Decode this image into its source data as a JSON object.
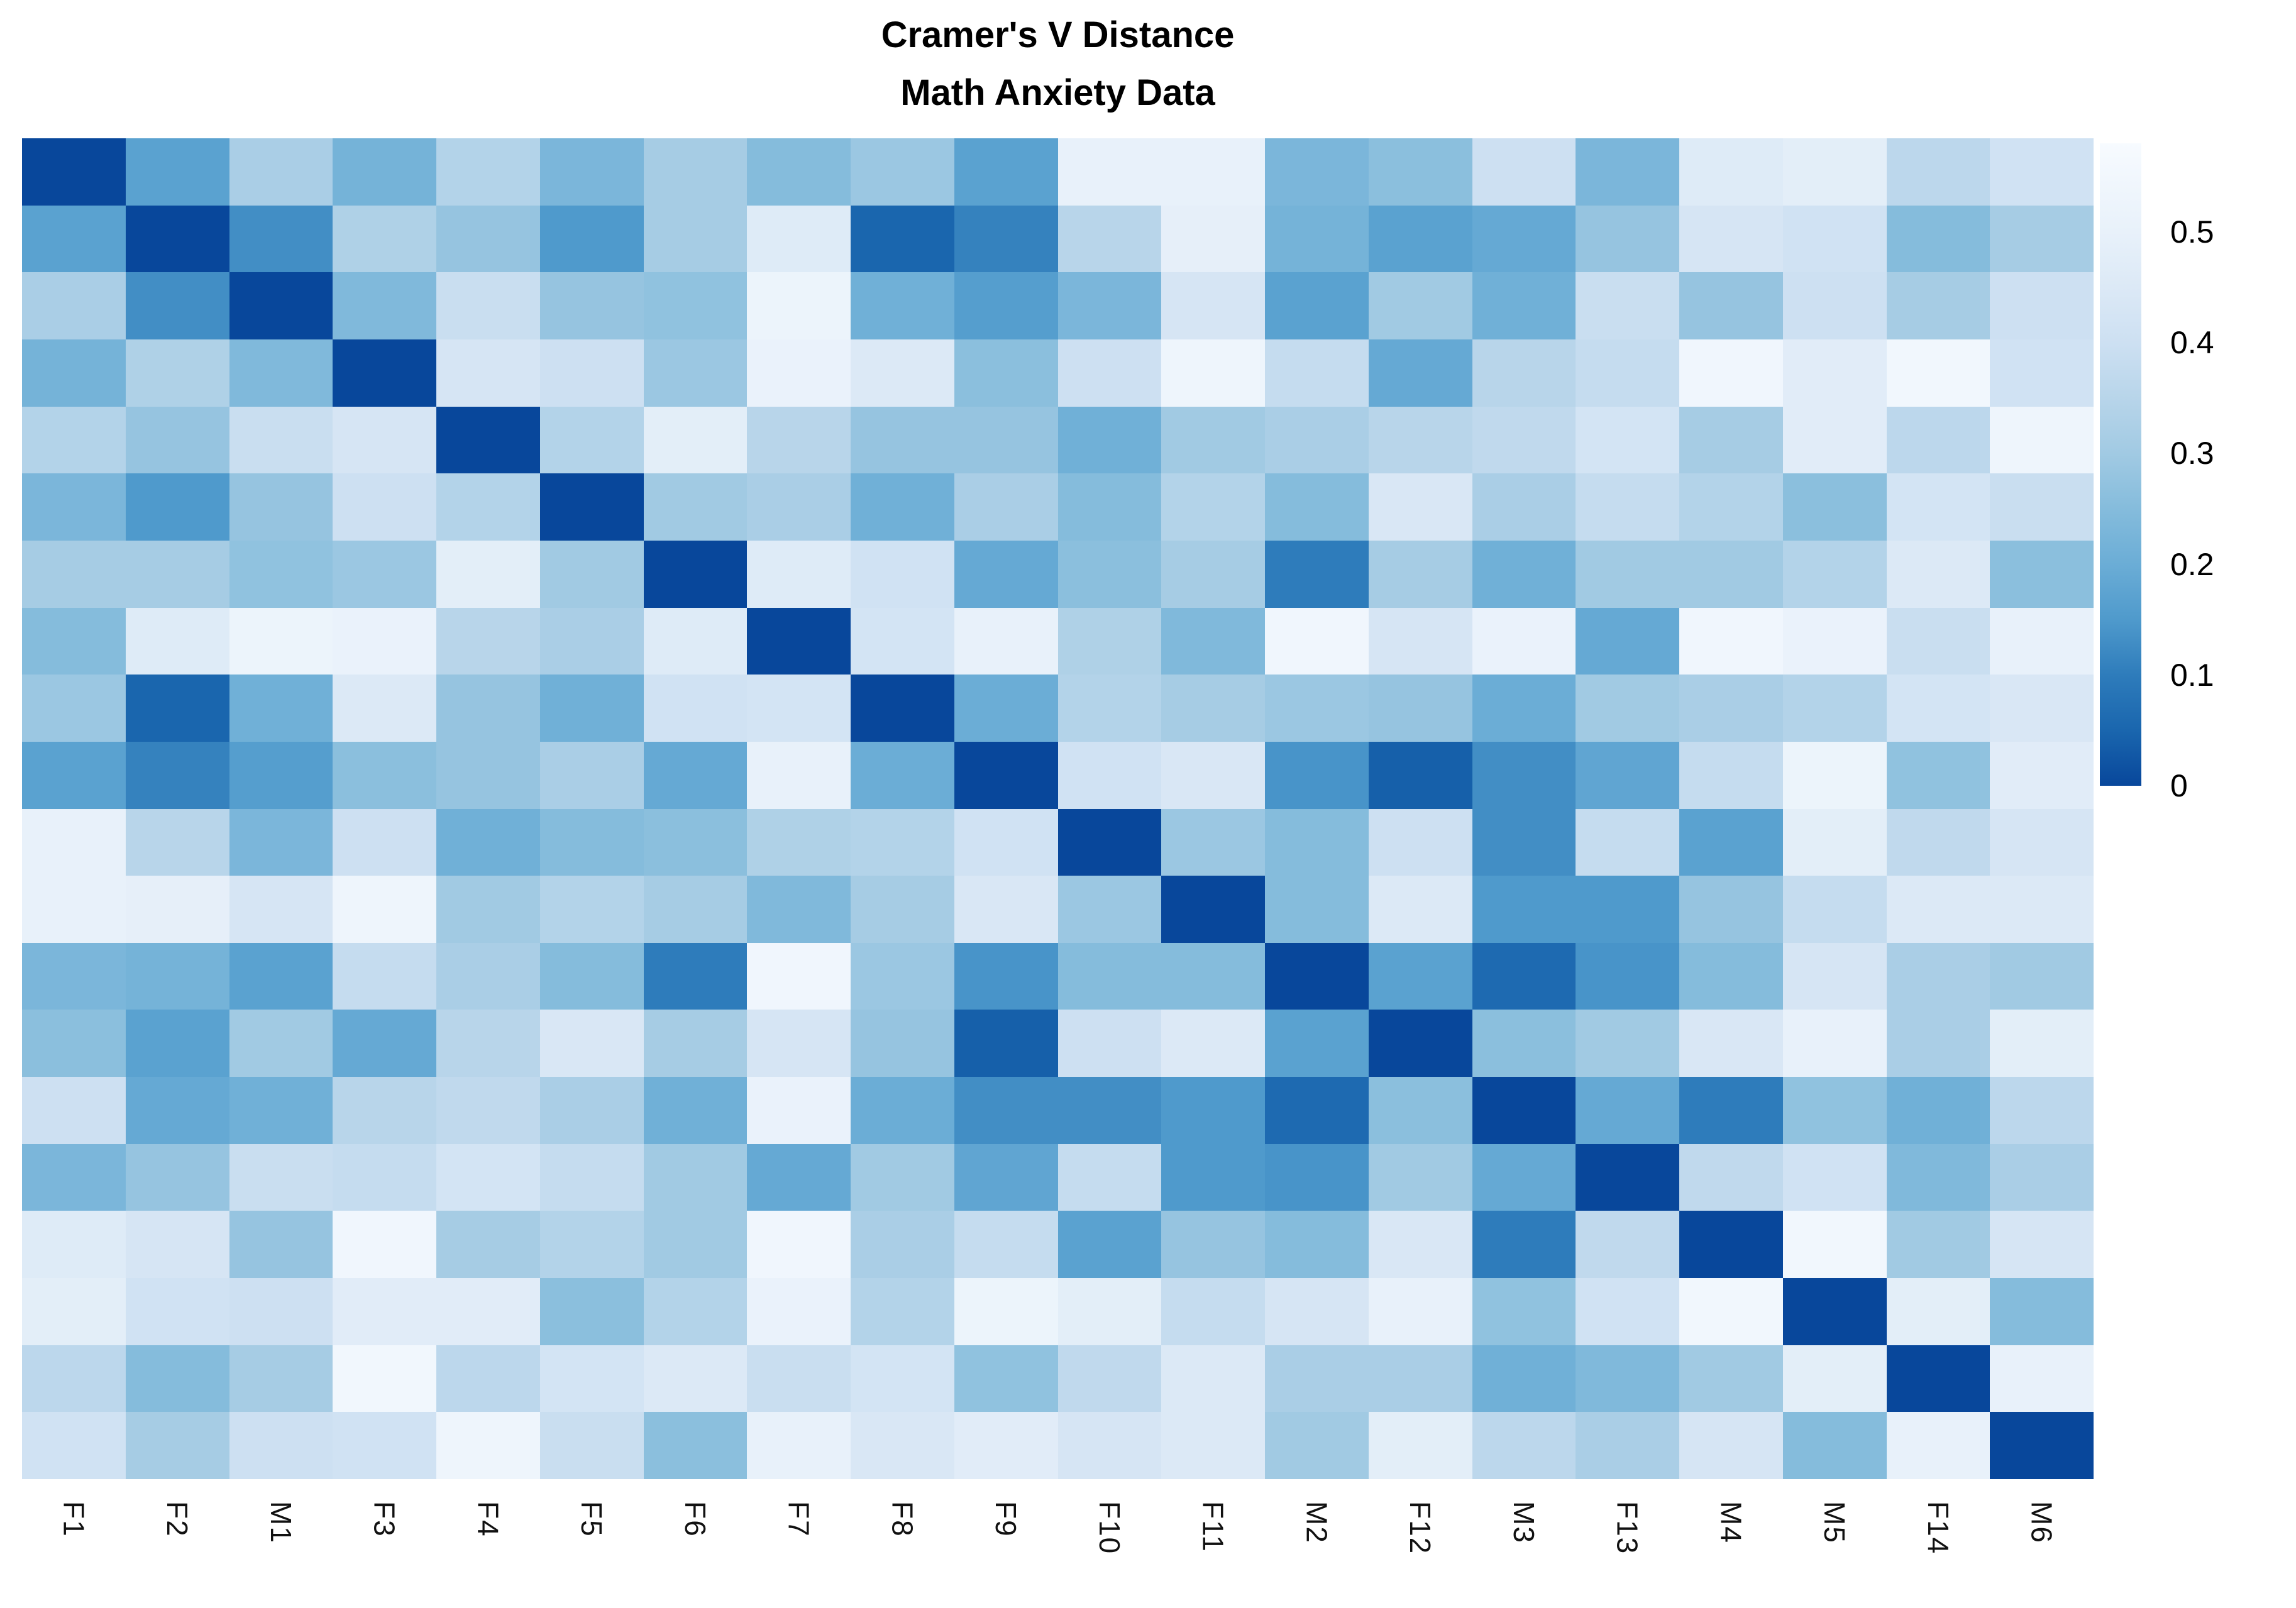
{
  "title": {
    "line1": "Cramer's V Distance",
    "line2": "Math Anxiety Data"
  },
  "chart_data": {
    "type": "heatmap",
    "title": "Cramer's V Distance",
    "subtitle": "Math Anxiety Data",
    "xlabel": "",
    "ylabel": "",
    "grid": false,
    "legend_position": "right",
    "x_tick_rotation": 90,
    "y_tick_labels_shown": false,
    "categories": [
      "F1",
      "F2",
      "M1",
      "F3",
      "F4",
      "F5",
      "F6",
      "F7",
      "F8",
      "F9",
      "F10",
      "F11",
      "M2",
      "F12",
      "M3",
      "F13",
      "M4",
      "M5",
      "F14",
      "M6"
    ],
    "values": [
      [
        0.0,
        0.17,
        0.32,
        0.22,
        0.34,
        0.23,
        0.31,
        0.25,
        0.29,
        0.17,
        0.5,
        0.5,
        0.23,
        0.26,
        0.4,
        0.23,
        0.46,
        0.48,
        0.36,
        0.41
      ],
      [
        0.17,
        0.0,
        0.13,
        0.33,
        0.28,
        0.15,
        0.31,
        0.46,
        0.05,
        0.11,
        0.35,
        0.49,
        0.22,
        0.17,
        0.19,
        0.28,
        0.43,
        0.41,
        0.25,
        0.31
      ],
      [
        0.32,
        0.13,
        0.0,
        0.24,
        0.39,
        0.28,
        0.27,
        0.52,
        0.21,
        0.16,
        0.23,
        0.43,
        0.17,
        0.3,
        0.21,
        0.39,
        0.28,
        0.4,
        0.31,
        0.4
      ],
      [
        0.22,
        0.33,
        0.24,
        0.0,
        0.43,
        0.4,
        0.29,
        0.51,
        0.45,
        0.26,
        0.4,
        0.53,
        0.38,
        0.19,
        0.35,
        0.38,
        0.54,
        0.47,
        0.55,
        0.41
      ],
      [
        0.34,
        0.28,
        0.39,
        0.43,
        0.0,
        0.34,
        0.48,
        0.35,
        0.28,
        0.28,
        0.21,
        0.3,
        0.32,
        0.35,
        0.37,
        0.42,
        0.31,
        0.47,
        0.36,
        0.53
      ],
      [
        0.23,
        0.15,
        0.28,
        0.4,
        0.34,
        0.0,
        0.3,
        0.32,
        0.21,
        0.32,
        0.25,
        0.34,
        0.25,
        0.44,
        0.32,
        0.38,
        0.34,
        0.26,
        0.42,
        0.39
      ],
      [
        0.31,
        0.31,
        0.27,
        0.29,
        0.48,
        0.3,
        0.0,
        0.46,
        0.41,
        0.19,
        0.26,
        0.31,
        0.1,
        0.31,
        0.21,
        0.3,
        0.3,
        0.34,
        0.45,
        0.26
      ],
      [
        0.25,
        0.46,
        0.52,
        0.51,
        0.35,
        0.32,
        0.46,
        0.0,
        0.42,
        0.5,
        0.33,
        0.24,
        0.54,
        0.43,
        0.51,
        0.19,
        0.54,
        0.51,
        0.39,
        0.5
      ],
      [
        0.29,
        0.05,
        0.21,
        0.45,
        0.28,
        0.21,
        0.41,
        0.42,
        0.0,
        0.2,
        0.34,
        0.31,
        0.29,
        0.28,
        0.2,
        0.3,
        0.32,
        0.34,
        0.42,
        0.44
      ],
      [
        0.17,
        0.11,
        0.16,
        0.26,
        0.28,
        0.32,
        0.19,
        0.5,
        0.2,
        0.0,
        0.41,
        0.44,
        0.14,
        0.04,
        0.13,
        0.18,
        0.38,
        0.52,
        0.27,
        0.47
      ],
      [
        0.5,
        0.35,
        0.23,
        0.4,
        0.21,
        0.25,
        0.26,
        0.33,
        0.34,
        0.41,
        0.0,
        0.29,
        0.25,
        0.4,
        0.13,
        0.38,
        0.17,
        0.48,
        0.37,
        0.43
      ],
      [
        0.5,
        0.49,
        0.43,
        0.53,
        0.3,
        0.34,
        0.31,
        0.24,
        0.31,
        0.44,
        0.29,
        0.0,
        0.25,
        0.45,
        0.15,
        0.15,
        0.28,
        0.38,
        0.45,
        0.45
      ],
      [
        0.23,
        0.22,
        0.17,
        0.38,
        0.32,
        0.25,
        0.1,
        0.54,
        0.29,
        0.14,
        0.25,
        0.25,
        0.0,
        0.17,
        0.06,
        0.14,
        0.25,
        0.43,
        0.32,
        0.3
      ],
      [
        0.26,
        0.17,
        0.3,
        0.19,
        0.35,
        0.44,
        0.31,
        0.43,
        0.28,
        0.04,
        0.4,
        0.45,
        0.17,
        0.0,
        0.26,
        0.3,
        0.44,
        0.5,
        0.32,
        0.48
      ],
      [
        0.4,
        0.19,
        0.21,
        0.35,
        0.37,
        0.32,
        0.21,
        0.51,
        0.2,
        0.13,
        0.13,
        0.15,
        0.06,
        0.26,
        0.0,
        0.19,
        0.1,
        0.27,
        0.21,
        0.36
      ],
      [
        0.23,
        0.28,
        0.39,
        0.38,
        0.42,
        0.38,
        0.3,
        0.19,
        0.3,
        0.18,
        0.38,
        0.15,
        0.14,
        0.3,
        0.19,
        0.0,
        0.37,
        0.41,
        0.24,
        0.32
      ],
      [
        0.46,
        0.43,
        0.28,
        0.54,
        0.31,
        0.34,
        0.3,
        0.54,
        0.32,
        0.38,
        0.17,
        0.28,
        0.25,
        0.44,
        0.1,
        0.37,
        0.0,
        0.55,
        0.3,
        0.43
      ],
      [
        0.48,
        0.41,
        0.4,
        0.47,
        0.47,
        0.26,
        0.34,
        0.51,
        0.34,
        0.52,
        0.48,
        0.38,
        0.43,
        0.5,
        0.27,
        0.41,
        0.55,
        0.0,
        0.48,
        0.25
      ],
      [
        0.36,
        0.25,
        0.31,
        0.55,
        0.36,
        0.42,
        0.45,
        0.39,
        0.42,
        0.27,
        0.37,
        0.45,
        0.32,
        0.32,
        0.21,
        0.24,
        0.3,
        0.48,
        0.0,
        0.5
      ],
      [
        0.41,
        0.31,
        0.4,
        0.41,
        0.53,
        0.39,
        0.26,
        0.5,
        0.44,
        0.47,
        0.43,
        0.45,
        0.3,
        0.48,
        0.36,
        0.32,
        0.43,
        0.25,
        0.5,
        0.0
      ]
    ],
    "colorbar": {
      "ticks": [
        "0.5",
        "0.4",
        "0.3",
        "0.2",
        "0.1",
        "0"
      ],
      "tick_values": [
        0.5,
        0.4,
        0.3,
        0.2,
        0.1,
        0
      ],
      "vmin": 0,
      "vmax": 0.58
    },
    "colormap": {
      "name": "blues-reversed",
      "dark_end": "#08479B",
      "light_end": "#F7FBFF",
      "anchors": [
        [
          0.0,
          "#08479B"
        ],
        [
          0.05,
          "#1A66AE"
        ],
        [
          0.1,
          "#2E7CBB"
        ],
        [
          0.15,
          "#4F9ACC"
        ],
        [
          0.2,
          "#6BADD6"
        ],
        [
          0.25,
          "#85BCDC"
        ],
        [
          0.3,
          "#A1CAE3"
        ],
        [
          0.35,
          "#B8D5EA"
        ],
        [
          0.4,
          "#CDE0F2"
        ],
        [
          0.45,
          "#DCE9F6"
        ],
        [
          0.5,
          "#E8F1FA"
        ],
        [
          0.58,
          "#F7FBFF"
        ]
      ]
    }
  }
}
